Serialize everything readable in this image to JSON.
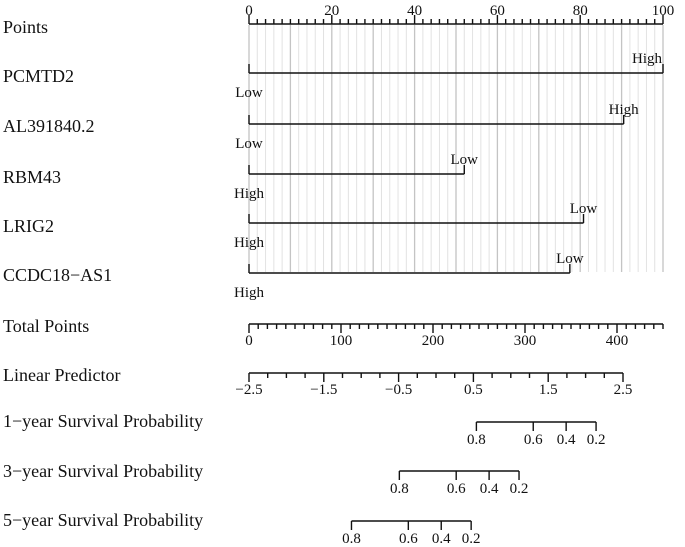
{
  "chart_data": {
    "type": "nomogram",
    "colors": {
      "ink": "#111111",
      "grid": "#cfcfcf"
    },
    "points_axis": {
      "label": "Points",
      "range": [
        0,
        100
      ],
      "tick_labels": [
        0,
        20,
        40,
        60,
        80,
        100
      ],
      "minor_step": 2
    },
    "variables": [
      {
        "name": "PCMTD2",
        "from": 0,
        "to": 100,
        "start_label": "Low",
        "end_label": "High"
      },
      {
        "name": "AL391840.2",
        "from": 0,
        "to": 90.5,
        "start_label": "Low",
        "end_label": "High"
      },
      {
        "name": "RBM43",
        "from": 0,
        "to": 52,
        "start_label": "High",
        "end_label": "Low"
      },
      {
        "name": "LRIG2",
        "from": 0,
        "to": 80.8,
        "start_label": "High",
        "end_label": "Low"
      },
      {
        "name": "CCDC18−AS1",
        "from": 0,
        "to": 77.5,
        "start_label": "High",
        "end_label": "Low"
      }
    ],
    "total_points": {
      "label": "Total Points",
      "range": [
        0,
        450
      ],
      "tick_labels": [
        0,
        100,
        200,
        300,
        400
      ],
      "minor_step": 10
    },
    "linear_predictor": {
      "label": "Linear Predictor",
      "range": [
        -2.5,
        2.5
      ],
      "tick_labels": [
        "−2.5",
        "−1.5",
        "−0.5",
        "0.5",
        "1.5",
        "2.5"
      ],
      "tick_values": [
        -2.5,
        -1.5,
        -0.5,
        0.5,
        1.5,
        2.5
      ],
      "minor_step": 0.25
    },
    "survival_scales": [
      {
        "label": "1−year Survival Probability",
        "ticks": [
          {
            "label": "0.8",
            "lp": 0.54
          },
          {
            "label": "0.6",
            "lp": 1.3
          },
          {
            "label": "0.4",
            "lp": 1.74
          },
          {
            "label": "0.2",
            "lp": 2.14
          }
        ]
      },
      {
        "label": "3−year Survival Probability",
        "ticks": [
          {
            "label": "0.8",
            "lp": -0.49
          },
          {
            "label": "0.6",
            "lp": 0.27
          },
          {
            "label": "0.4",
            "lp": 0.71
          },
          {
            "label": "0.2",
            "lp": 1.11
          }
        ]
      },
      {
        "label": "5−year Survival Probability",
        "ticks": [
          {
            "label": "0.8",
            "lp": -1.13
          },
          {
            "label": "0.6",
            "lp": -0.37
          },
          {
            "label": "0.4",
            "lp": 0.07
          },
          {
            "label": "0.2",
            "lp": 0.47
          }
        ]
      }
    ]
  }
}
